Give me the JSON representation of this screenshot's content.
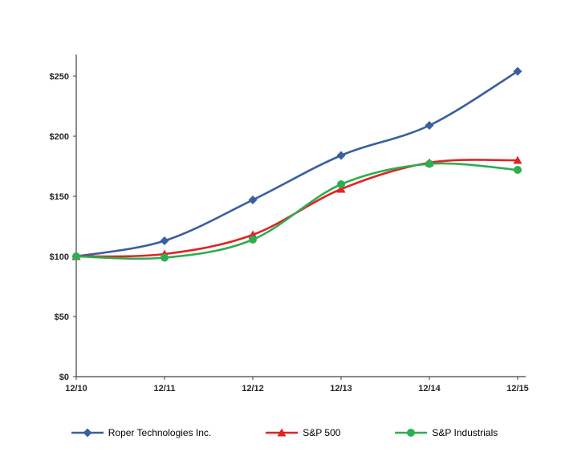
{
  "chart_data": {
    "type": "line",
    "categories": [
      "12/10",
      "12/11",
      "12/12",
      "12/13",
      "12/14",
      "12/15"
    ],
    "series": [
      {
        "name": "Roper Technologies Inc.",
        "marker": "diamond",
        "color": "#3A5F9E",
        "values": [
          100,
          113,
          147,
          184,
          209,
          254
        ]
      },
      {
        "name": "S&P 500",
        "marker": "triangle",
        "color": "#E02424",
        "values": [
          100,
          102,
          118,
          156,
          178,
          180
        ]
      },
      {
        "name": "S&P Industrials",
        "marker": "circle",
        "color": "#2EAD52",
        "values": [
          100,
          99,
          114,
          160,
          177,
          172
        ]
      }
    ],
    "title": "",
    "xlabel": "",
    "ylabel": "",
    "ylim": [
      0,
      250
    ],
    "yticks": [
      0,
      50,
      100,
      150,
      200,
      250
    ],
    "ytick_labels": [
      "$0",
      "$50",
      "$100",
      "$150",
      "$200",
      "$250"
    ],
    "grid": false,
    "legend_position": "bottom",
    "axis_color": "#404040",
    "label_color": "#262626"
  }
}
